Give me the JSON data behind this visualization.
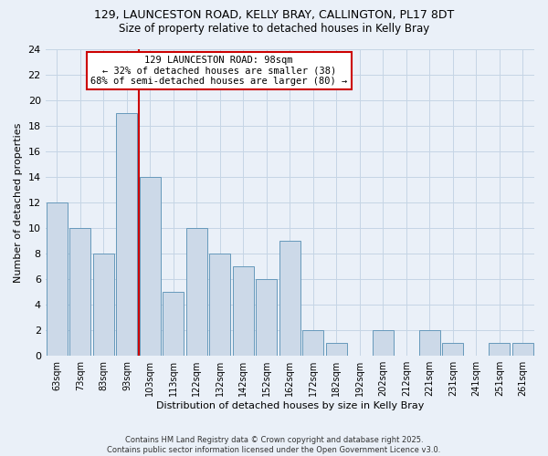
{
  "title_line1": "129, LAUNCESTON ROAD, KELLY BRAY, CALLINGTON, PL17 8DT",
  "title_line2": "Size of property relative to detached houses in Kelly Bray",
  "xlabel": "Distribution of detached houses by size in Kelly Bray",
  "ylabel": "Number of detached properties",
  "bin_labels": [
    "63sqm",
    "73sqm",
    "83sqm",
    "93sqm",
    "103sqm",
    "113sqm",
    "122sqm",
    "132sqm",
    "142sqm",
    "152sqm",
    "162sqm",
    "172sqm",
    "182sqm",
    "192sqm",
    "202sqm",
    "212sqm",
    "221sqm",
    "231sqm",
    "241sqm",
    "251sqm",
    "261sqm"
  ],
  "bar_heights": [
    12,
    10,
    8,
    19,
    14,
    5,
    10,
    8,
    7,
    6,
    9,
    2,
    1,
    0,
    2,
    0,
    2,
    1,
    0,
    1,
    1
  ],
  "bar_color": "#ccd9e8",
  "bar_edge_color": "#6699bb",
  "grid_color": "#c5d5e5",
  "ylim": [
    0,
    24
  ],
  "yticks": [
    0,
    2,
    4,
    6,
    8,
    10,
    12,
    14,
    16,
    18,
    20,
    22,
    24
  ],
  "property_size_bin": 3,
  "vline_color": "#cc0000",
  "annotation_text": "129 LAUNCESTON ROAD: 98sqm\n← 32% of detached houses are smaller (38)\n68% of semi-detached houses are larger (80) →",
  "annotation_box_color": "#ffffff",
  "annotation_box_edge": "#cc0000",
  "bg_color": "#eaf0f8",
  "footer_line1": "Contains HM Land Registry data © Crown copyright and database right 2025.",
  "footer_line2": "Contains public sector information licensed under the Open Government Licence v3.0."
}
